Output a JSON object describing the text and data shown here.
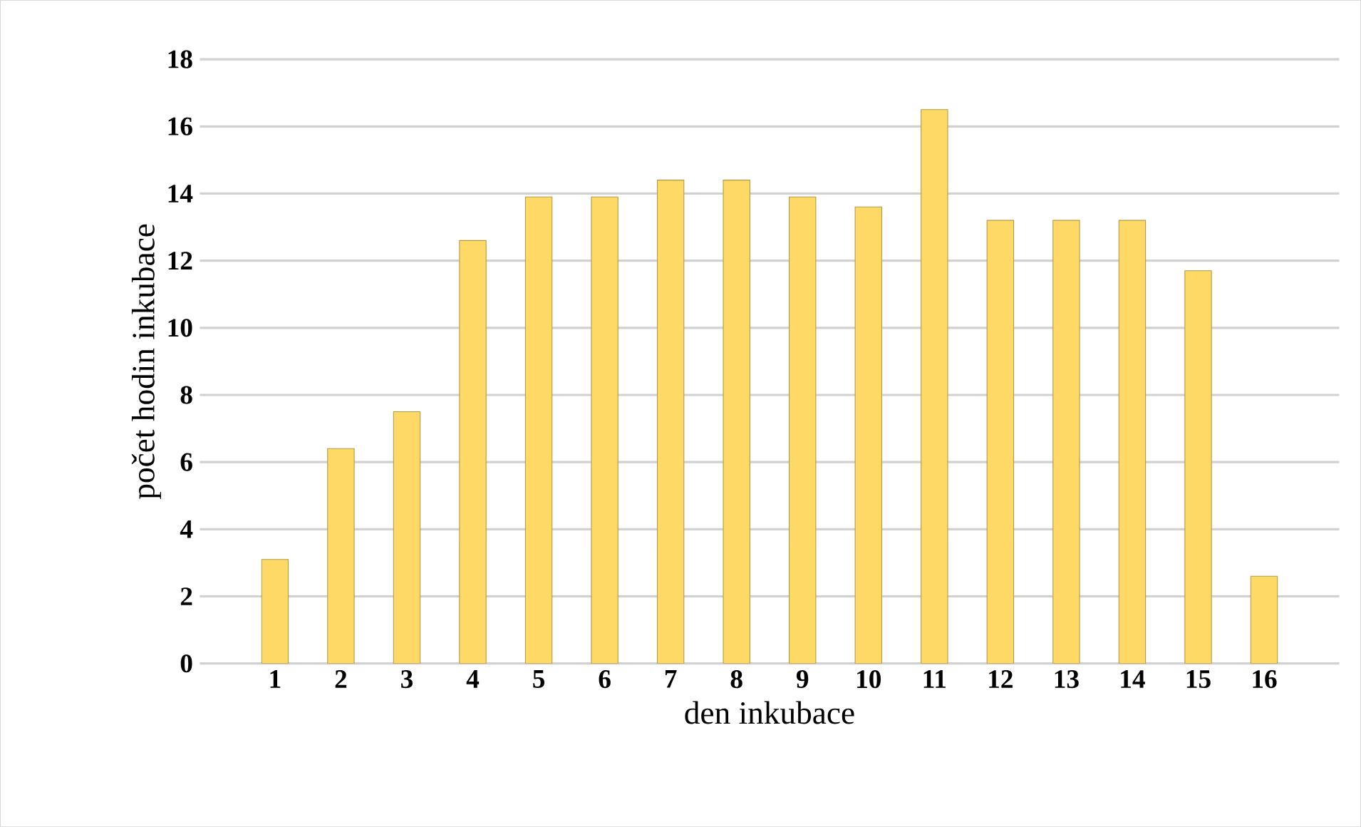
{
  "chart_data": {
    "type": "bar",
    "xlabel": "den inkubace",
    "ylabel": "počet hodin inkubace",
    "categories": [
      "1",
      "2",
      "3",
      "4",
      "5",
      "6",
      "7",
      "8",
      "9",
      "10",
      "11",
      "12",
      "13",
      "14",
      "15",
      "16"
    ],
    "values": [
      3.1,
      6.4,
      7.5,
      12.6,
      13.9,
      13.9,
      14.4,
      14.4,
      13.9,
      13.6,
      16.5,
      13.2,
      13.2,
      13.2,
      11.7,
      2.6
    ],
    "color": "#ffd966",
    "ylim": [
      0,
      18
    ],
    "yticks": [
      0,
      2,
      4,
      6,
      8,
      10,
      12,
      14,
      16,
      18
    ],
    "grid": "y"
  }
}
